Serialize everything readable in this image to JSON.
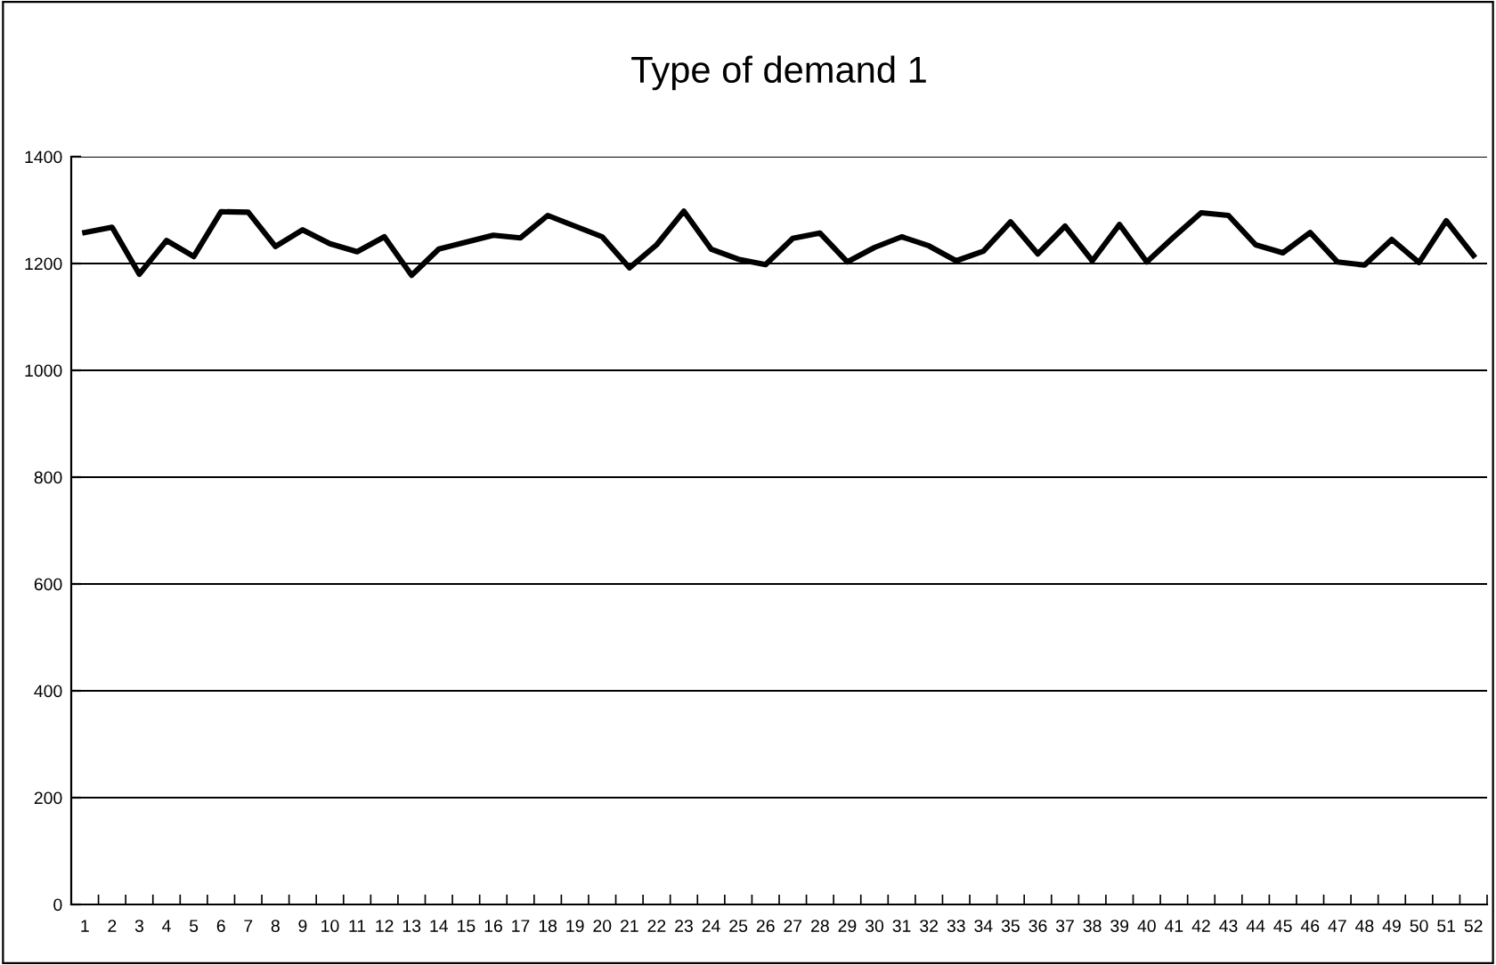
{
  "chart_data": {
    "type": "line",
    "title": "Type of demand 1",
    "categories": [
      "1",
      "2",
      "3",
      "4",
      "5",
      "6",
      "7",
      "8",
      "9",
      "10",
      "11",
      "12",
      "13",
      "14",
      "15",
      "16",
      "17",
      "18",
      "19",
      "20",
      "21",
      "22",
      "23",
      "24",
      "25",
      "26",
      "27",
      "28",
      "29",
      "30",
      "31",
      "32",
      "33",
      "34",
      "35",
      "36",
      "37",
      "38",
      "39",
      "40",
      "41",
      "42",
      "43",
      "44",
      "45",
      "46",
      "47",
      "48",
      "49",
      "50",
      "51",
      "52"
    ],
    "series": [
      {
        "color": "#000000",
        "values": [
          1258,
          1268,
          1180,
          1243,
          1213,
          1297,
          1296,
          1232,
          1263,
          1237,
          1222,
          1250,
          1178,
          1227,
          1240,
          1253,
          1248,
          1290,
          1270,
          1250,
          1192,
          1235,
          1298,
          1227,
          1208,
          1198,
          1247,
          1257,
          1203,
          1230,
          1250,
          1233,
          1205,
          1223,
          1278,
          1218,
          1270,
          1205,
          1273,
          1203,
          1250,
          1295,
          1290,
          1235,
          1220,
          1258,
          1203,
          1197,
          1245,
          1202,
          1280,
          1215
        ]
      }
    ],
    "ylim": [
      0,
      1400
    ],
    "yticks": [
      0,
      200,
      400,
      600,
      800,
      1000,
      1200,
      1400
    ],
    "grid": "y",
    "marker": "none",
    "line_style": "solid"
  }
}
